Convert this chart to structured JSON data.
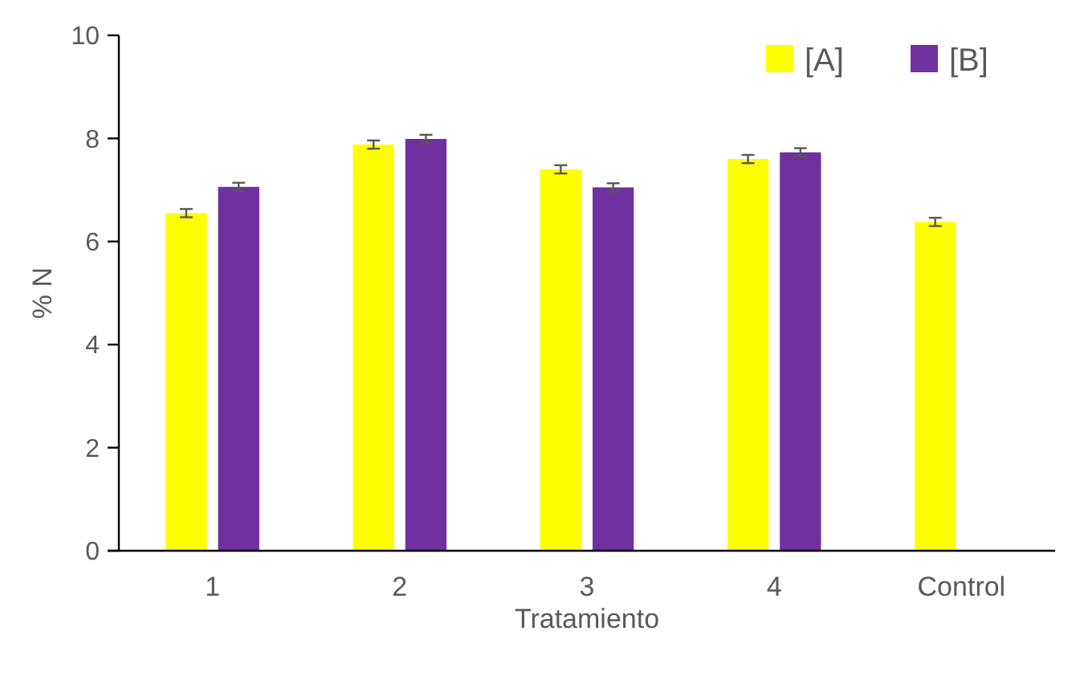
{
  "chart_data": {
    "type": "bar",
    "xlabel": "Tratamiento",
    "ylabel": "% N",
    "categories": [
      "1",
      "2",
      "3",
      "4",
      "Control"
    ],
    "series": [
      {
        "name": "[A]",
        "color": "#ffff00",
        "values": [
          6.55,
          7.88,
          7.4,
          7.6,
          6.38
        ],
        "errors": [
          0.08,
          0.08,
          0.08,
          0.08,
          0.08
        ]
      },
      {
        "name": "[B]",
        "color": "#7030a0",
        "values": [
          7.06,
          7.99,
          7.05,
          7.73,
          null
        ],
        "errors": [
          0.08,
          0.08,
          0.08,
          0.08,
          null
        ]
      }
    ],
    "ylim": [
      0,
      10
    ],
    "yticks": [
      0,
      2,
      4,
      6,
      8,
      10
    ],
    "grid": false,
    "legend": "top right"
  }
}
